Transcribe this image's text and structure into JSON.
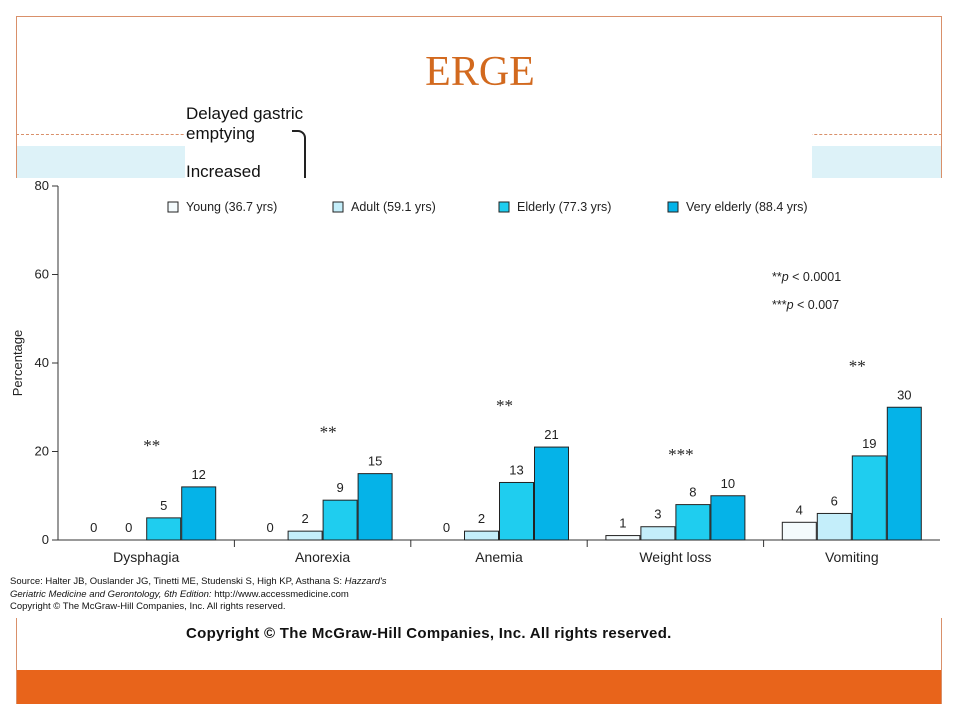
{
  "slide": {
    "title": "ERGE",
    "background_image_text": {
      "line1": "Delayed gastric",
      "line2": "emptying",
      "line3": "Increased",
      "copyright": "Copyright © The McGraw-Hill Companies, Inc. All rights reserved."
    },
    "colors": {
      "title": "#d2691e",
      "accent_bar": "#e8641b",
      "band": "#ddf2f8",
      "frame": "#d9906a"
    }
  },
  "chart_data": {
    "type": "bar",
    "ylabel": "Percentage",
    "xlabel": "",
    "ylim": [
      0,
      80
    ],
    "yticks": [
      "0",
      "20",
      "40",
      "60",
      "80"
    ],
    "categories": [
      "Dysphagia",
      "Anorexia",
      "Anemia",
      "Weight loss",
      "Vomiting"
    ],
    "series": [
      {
        "name": "Young (36.7 yrs)",
        "values": [
          0,
          0,
          0,
          1,
          4
        ],
        "labels": [
          "0",
          "0",
          "0",
          "1",
          "4"
        ],
        "color": "#f4fbfd"
      },
      {
        "name": "Adult (59.1 yrs)",
        "values": [
          0,
          2,
          2,
          3,
          6
        ],
        "labels": [
          "0",
          "2",
          "2",
          "3",
          "6"
        ],
        "color": "#c4eefa"
      },
      {
        "name": "Elderly (77.3 yrs)",
        "values": [
          5,
          9,
          13,
          8,
          19
        ],
        "labels": [
          "5",
          "9",
          "13",
          "8",
          "19"
        ],
        "color": "#1fcdef"
      },
      {
        "name": "Very elderly (88.4 yrs)",
        "values": [
          12,
          15,
          21,
          10,
          30
        ],
        "labels": [
          "12",
          "15",
          "21",
          "10",
          "30"
        ],
        "color": "#05b3e8"
      }
    ],
    "significance": [
      "**",
      "**",
      "**",
      "***",
      "**"
    ],
    "footnotes": [
      {
        "stars": "**",
        "italic": "p",
        "rest": " < 0.0001"
      },
      {
        "stars": "***",
        "italic": "p",
        "rest": " < 0.007"
      }
    ],
    "legend_position": "top",
    "grid": false
  },
  "source": {
    "line1_plain": "Source: Halter JB, Ouslander JG, Tinetti ME, Studenski S, High KP, Asthana S: ",
    "line1_italic": "Hazzard's",
    "line2_italic": "Geriatric Medicine and Gerontology, 6th Edition: ",
    "line2_plain": "http://www.accessmedicine.com",
    "line3": "Copyright © The McGraw-Hill Companies, Inc. All rights reserved."
  }
}
